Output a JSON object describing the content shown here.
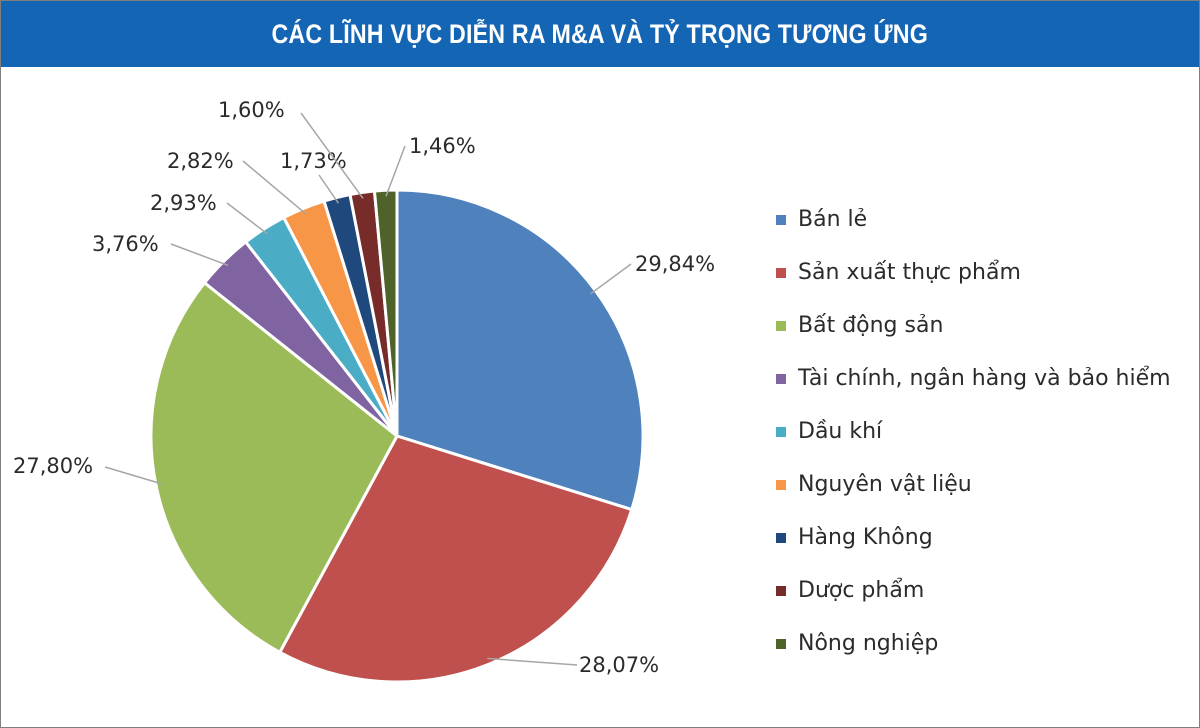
{
  "title": "CÁC LĨNH VỰC DIỄN RA M&A VÀ TỶ TRỌNG TƯƠNG ỨNG",
  "chart_data": {
    "type": "pie",
    "title": "CÁC LĨNH VỰC DIỄN RA M&A VÀ TỶ TRỌNG TƯƠNG ỨNG",
    "legend_position": "right",
    "slices": [
      {
        "label": "Bán lẻ",
        "value": 29.84,
        "value_label": "29,84%",
        "color": "#4f81bd"
      },
      {
        "label": "Sản xuất thực phẩm",
        "value": 28.07,
        "value_label": "28,07%",
        "color": "#c0504d"
      },
      {
        "label": "Bất động sản",
        "value": 27.8,
        "value_label": "27,80%",
        "color": "#9bbb59"
      },
      {
        "label": "Tài chính, ngân hàng và bảo hiểm",
        "value": 3.76,
        "value_label": "3,76%",
        "color": "#8064a2"
      },
      {
        "label": "Dầu khí",
        "value": 2.93,
        "value_label": "2,93%",
        "color": "#4bacc6"
      },
      {
        "label": "Nguyên vật liệu",
        "value": 2.82,
        "value_label": "2,82%",
        "color": "#f79646"
      },
      {
        "label": "Hàng Không",
        "value": 1.73,
        "value_label": "1,73%",
        "color": "#1f497d"
      },
      {
        "label": "Dược phẩm",
        "value": 1.6,
        "value_label": "1,60%",
        "color": "#772c2a"
      },
      {
        "label": "Nông nghiệp",
        "value": 1.46,
        "value_label": "1,46%",
        "color": "#4f6228"
      }
    ]
  }
}
